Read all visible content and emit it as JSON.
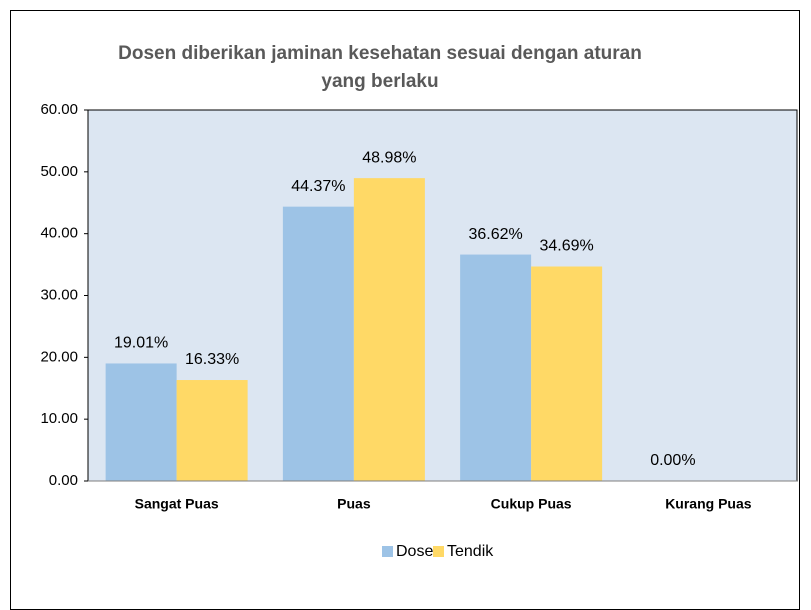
{
  "chart_data": {
    "type": "bar",
    "title": "Dosen diberikan jaminan kesehatan sesuai dengan aturan yang berlaku",
    "categories": [
      "Sangat Puas",
      "Puas",
      "Cukup Puas",
      "Kurang Puas"
    ],
    "series": [
      {
        "name": "Dosen",
        "color": "#9dc3e6",
        "values": [
          19.01,
          44.37,
          36.62,
          0.0
        ],
        "value_labels": [
          "19.01%",
          "44.37%",
          "36.62%",
          "0.00%"
        ]
      },
      {
        "name": "Tendik",
        "color": "#ffd966",
        "values": [
          16.33,
          48.98,
          34.69,
          null
        ],
        "value_labels": [
          "16.33%",
          "48.98%",
          "34.69%",
          null
        ]
      }
    ],
    "ylim": [
      0,
      60
    ],
    "yticks": [
      {
        "value": 0,
        "label": "0.00"
      },
      {
        "value": 10,
        "label": "10.00"
      },
      {
        "value": 20,
        "label": "20.00"
      },
      {
        "value": 30,
        "label": "30.00"
      },
      {
        "value": 40,
        "label": "40.00"
      },
      {
        "value": 50,
        "label": "50.00"
      },
      {
        "value": 60,
        "label": "60.00"
      }
    ],
    "legend": "bottom"
  }
}
